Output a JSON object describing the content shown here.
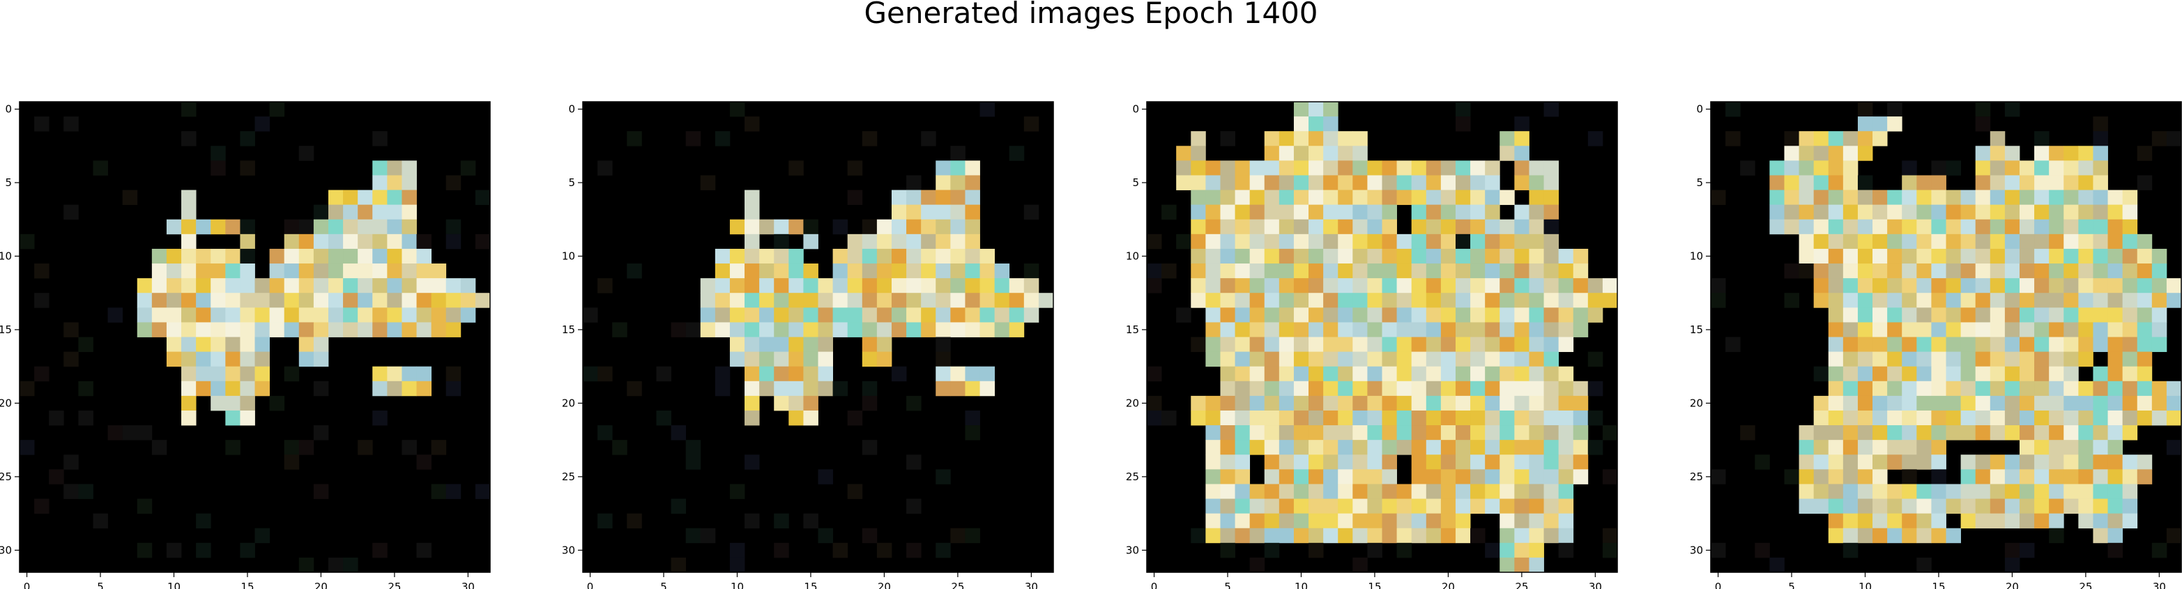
{
  "chart_data": {
    "type": "heatmap",
    "title": "Generated images Epoch 1400",
    "grid": false,
    "panels": [
      {
        "name": "",
        "xlim": [
          -0.5,
          31.5
        ],
        "ylim": [
          31.5,
          -0.5
        ],
        "xticks": [
          0,
          5,
          10,
          15,
          20,
          25,
          30
        ],
        "yticks": [
          0,
          5,
          10,
          15,
          20,
          25,
          30
        ],
        "mask": [
          "................................",
          "................................",
          "................................",
          "................................",
          "........................###.....",
          "........................###.....",
          "...........#.........######.....",
          "...........#.........######.....",
          "..........#####.....#######.....",
          "...........#...#..#########.....",
          ".........######..###########....",
          ".........#######.############...",
          "........#######################.",
          "........########################",
          "........#######################.",
          "........######################..",
          "..........#######..##...........",
          "..........#######..##...........",
          "...........######.......####....",
          "...........######.......####....",
          "...........#.###................",
          "...........#..##................",
          "................................",
          "................................",
          "................................",
          "................................",
          "................................",
          "................................",
          "................................",
          "................................",
          "................................",
          "................................"
        ]
      },
      {
        "name": "",
        "xlim": [
          -0.5,
          31.5
        ],
        "ylim": [
          31.5,
          -0.5
        ],
        "xticks": [
          0,
          5,
          10,
          15,
          20,
          25,
          30
        ],
        "yticks": [
          0,
          5,
          10,
          15,
          20,
          25,
          30
        ],
        "mask": [
          "................................",
          "................................",
          "................................",
          "................................",
          "........................###.....",
          "........................###.....",
          "...........#.........######.....",
          "...........#.........######.....",
          "..........#####.....#######.....",
          "...........#...#..#########.....",
          ".........######..###########....",
          ".........#######.############...",
          "........#######################.",
          "........########################",
          "........#######################.",
          "........######################..",
          "..........#######..##...........",
          "..........#######..##...........",
          "...........######.......####....",
          "...........######.......####....",
          "...........#.###................",
          "...........#..##................",
          "................................",
          "................................",
          "................................",
          "................................",
          "................................",
          "................................",
          "................................",
          "................................",
          "................................",
          "................................"
        ]
      },
      {
        "name": "",
        "xlim": [
          -0.5,
          31.5
        ],
        "ylim": [
          31.5,
          -0.5
        ],
        "xticks": [
          0,
          5,
          10,
          15,
          20,
          25,
          30
        ],
        "yticks": [
          0,
          5,
          10,
          15,
          20,
          25,
          30
        ],
        "mask": [
          "..........###...................",
          "..........###...................",
          "...#....#######.........##......",
          "..##....#######.........##......",
          "..######################.###....",
          "..######################.###....",
          "...######################.##....",
          "...##############.######.###....",
          "...##############.#########.....",
          "...##################.######....",
          "...###########################..",
          "...###########################..",
          "...#############################",
          "...#############################",
          "....###########################.",
          "....##########################..",
          "....#########################...",
          "....########################....",
          ".....########################...",
          ".....#########################..",
          "...###########################..",
          "...###########################..",
          "....##########################..",
          "....##########################..",
          "....###.#########.############..",
          "....###.#########.############..",
          "....#########################...",
          "....#########################...",
          "....##################..#####...",
          "....##################..#####...",
          "........................###.....",
          "........................###....."
        ]
      },
      {
        "name": "",
        "xlim": [
          -0.5,
          31.5
        ],
        "ylim": [
          31.5,
          -0.5
        ],
        "xticks": [
          0,
          5,
          10,
          15,
          20,
          25,
          30
        ],
        "yticks": [
          0,
          5,
          10,
          15,
          20,
          25,
          30
        ],
        "mask": [
          "................................",
          "..........###...................",
          "......######.......#............",
          ".....######.......###.#####.....",
          "....######........#########.....",
          "....######...###..#########.....",
          "....#########################...",
          "....#########################...",
          "....#########################...",
          "......########################..",
          "......#########################.",
          ".......########################.",
          ".......#########################",
          ".......#########################",
          "........#######################.",
          "........#######################.",
          "........#######################.",
          "........##################.###..",
          "........#################.####..",
          "........########################",
          ".......#########################",
          ".......#########################",
          "......#######################...",
          "......##########.....#######....",
          "......##########.#############..",
          "......######.....#############..",
          "......#######################...",
          "......#######################...",
          "........########.#######.####...",
          "........#########.........##....",
          "................................",
          "................................"
        ]
      }
    ]
  }
}
